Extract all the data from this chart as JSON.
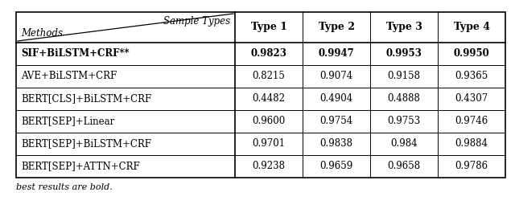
{
  "col_headers": [
    "Type 1",
    "Type 2",
    "Type 3",
    "Type 4"
  ],
  "row_labels": [
    "SIF+BiLSTM+CRF**",
    "AVE+BiLSTM+CRF",
    "BERT[CLS]+BiLSTM+CRF",
    "BERT[SEP]+Linear",
    "BERT[SEP]+BiLSTM+CRF",
    "BERT[SEP]+ATTN+CRF"
  ],
  "data": [
    [
      "0.9823",
      "0.9947",
      "0.9953",
      "0.9950"
    ],
    [
      "0.8215",
      "0.9074",
      "0.9158",
      "0.9365"
    ],
    [
      "0.4482",
      "0.4904",
      "0.4888",
      "0.4307"
    ],
    [
      "0.9600",
      "0.9754",
      "0.9753",
      "0.9746"
    ],
    [
      "0.9701",
      "0.9838",
      "0.984",
      "0.9884"
    ],
    [
      "0.9238",
      "0.9659",
      "0.9658",
      "0.9786"
    ]
  ],
  "bold_row": 0,
  "footnote": "best results are bold.",
  "header_method": "Methods",
  "header_sample": "Sample Types",
  "fig_width": 6.4,
  "fig_height": 2.65,
  "dpi": 100
}
